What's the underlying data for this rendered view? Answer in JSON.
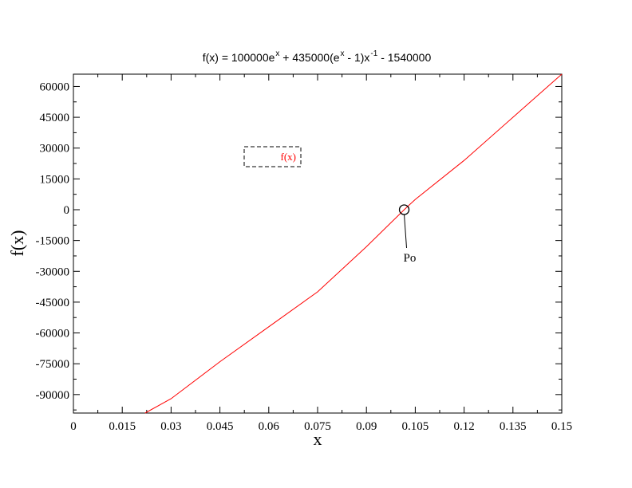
{
  "chart_data": {
    "type": "line",
    "title": {
      "parts": [
        {
          "text": "f(x) = 100000e",
          "sup": false
        },
        {
          "text": "x",
          "sup": true
        },
        {
          "text": " + 435000(e",
          "sup": false
        },
        {
          "text": "x",
          "sup": true
        },
        {
          "text": " - 1)x",
          "sup": false
        },
        {
          "text": "-1",
          "sup": true
        },
        {
          "text": " - 1540000",
          "sup": false
        }
      ]
    },
    "xlabel": "x",
    "ylabel": "f(x)",
    "xlim": [
      0,
      0.15
    ],
    "ylim": [
      -99000,
      66000
    ],
    "x_ticks": [
      0,
      0.015,
      0.03,
      0.045,
      0.06,
      0.075,
      0.09,
      0.105,
      0.12,
      0.135,
      0.15
    ],
    "x_tick_labels": [
      "0",
      "0.015",
      "0.03",
      "0.045",
      "0.06",
      "0.075",
      "0.09",
      "0.105",
      "0.12",
      "0.135",
      "0.15"
    ],
    "y_ticks": [
      60000,
      45000,
      30000,
      15000,
      0,
      -15000,
      -30000,
      -45000,
      -60000,
      -75000,
      -90000
    ],
    "y_tick_labels": [
      "60000",
      "45000",
      "30000",
      "15000",
      "0",
      "-15000",
      "-30000",
      "-45000",
      "-60000",
      "-75000",
      "-90000"
    ],
    "x_minor_step": 0.0075,
    "y_minor_step": 7500,
    "grid": false,
    "legend": {
      "position": "upper-left",
      "entries": [
        {
          "label": "f(x)",
          "color": "#ff0000"
        }
      ]
    },
    "series": [
      {
        "name": "f(x)",
        "color": "#ff0000",
        "x": [
          0.022,
          0.03,
          0.045,
          0.06,
          0.075,
          0.09,
          0.1016,
          0.105,
          0.12,
          0.135,
          0.15
        ],
        "y": [
          -99000,
          -92000,
          -74000,
          -57000,
          -40000,
          -18000,
          0,
          5000,
          24000,
          45000,
          66000
        ]
      }
    ],
    "annotations": [
      {
        "label": "Po",
        "x": 0.1016,
        "y": 0,
        "marker": "circle"
      }
    ]
  }
}
